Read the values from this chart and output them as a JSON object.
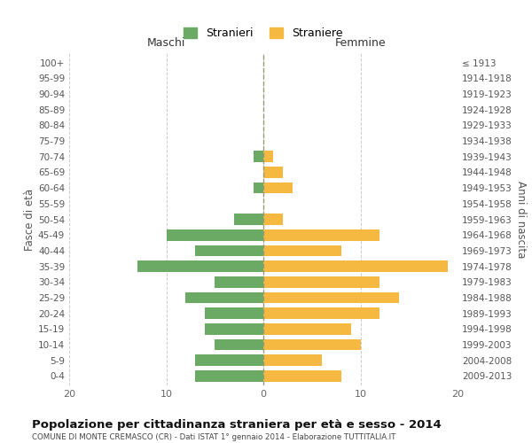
{
  "age_groups": [
    "100+",
    "95-99",
    "90-94",
    "85-89",
    "80-84",
    "75-79",
    "70-74",
    "65-69",
    "60-64",
    "55-59",
    "50-54",
    "45-49",
    "40-44",
    "35-39",
    "30-34",
    "25-29",
    "20-24",
    "15-19",
    "10-14",
    "5-9",
    "0-4"
  ],
  "birth_years": [
    "≤ 1913",
    "1914-1918",
    "1919-1923",
    "1924-1928",
    "1929-1933",
    "1934-1938",
    "1939-1943",
    "1944-1948",
    "1949-1953",
    "1954-1958",
    "1959-1963",
    "1964-1968",
    "1969-1973",
    "1974-1978",
    "1979-1983",
    "1984-1988",
    "1989-1993",
    "1994-1998",
    "1999-2003",
    "2004-2008",
    "2009-2013"
  ],
  "maschi": [
    0,
    0,
    0,
    0,
    0,
    0,
    1,
    0,
    1,
    0,
    3,
    10,
    7,
    13,
    5,
    8,
    6,
    6,
    5,
    7,
    7
  ],
  "femmine": [
    0,
    0,
    0,
    0,
    0,
    0,
    1,
    2,
    3,
    0,
    2,
    12,
    8,
    19,
    12,
    14,
    12,
    9,
    10,
    6,
    8
  ],
  "color_maschi": "#6aaa64",
  "color_femmine": "#f5b942",
  "title": "Popolazione per cittadinanza straniera per età e sesso - 2014",
  "subtitle": "COMUNE DI MONTE CREMASCO (CR) - Dati ISTAT 1° gennaio 2014 - Elaborazione TUTTITALIA.IT",
  "ylabel_left": "Fasce di età",
  "ylabel_right": "Anni di nascita",
  "xlabel_maschi": "Maschi",
  "xlabel_femmine": "Femmine",
  "legend_maschi": "Stranieri",
  "legend_femmine": "Straniere",
  "xlim": 20,
  "background_color": "#ffffff",
  "grid_color": "#cccccc"
}
